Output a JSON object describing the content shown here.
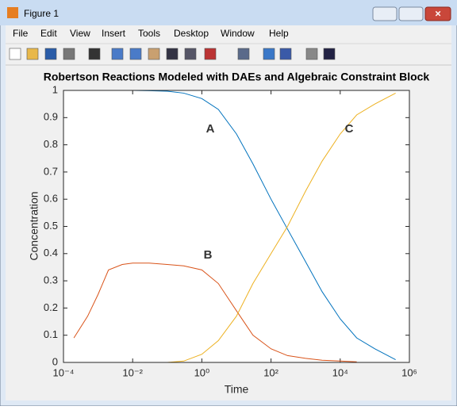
{
  "window_title": "Figure 1",
  "menu": [
    "File",
    "Edit",
    "View",
    "Insert",
    "Tools",
    "Desktop",
    "Window",
    "Help"
  ],
  "chart_data": {
    "type": "line",
    "title": "Robertson Reactions Modeled with DAEs and Algebraic Constraint Block",
    "x_label": "Time",
    "y_label": "Concentration",
    "x": [
      0.0002,
      0.0005,
      0.001,
      0.002,
      0.005,
      0.01,
      0.03,
      0.1,
      0.3,
      1,
      3,
      10,
      30,
      100,
      300,
      1000,
      3000,
      10000,
      30000,
      100000,
      400000
    ],
    "series": [
      {
        "name": "A",
        "color": "#0072bd",
        "values": [
          1,
          1,
          1,
          1,
          1,
          1,
          0.999,
          0.997,
          0.99,
          0.97,
          0.93,
          0.84,
          0.73,
          0.6,
          0.49,
          0.37,
          0.26,
          0.16,
          0.09,
          0.05,
          0.01
        ]
      },
      {
        "name": "B",
        "color": "#d95319",
        "values": [
          0.09,
          0.17,
          0.25,
          0.34,
          0.36,
          0.365,
          0.365,
          0.36,
          0.355,
          0.34,
          0.29,
          0.19,
          0.1,
          0.05,
          0.025,
          0.015,
          0.008,
          0.005,
          0.002,
          null,
          null
        ]
      },
      {
        "name": "C",
        "color": "#edb120",
        "values": [
          null,
          null,
          null,
          null,
          null,
          null,
          null,
          0,
          0.005,
          0.03,
          0.08,
          0.17,
          0.29,
          0.4,
          0.5,
          0.63,
          0.74,
          0.84,
          0.91,
          0.95,
          0.99
        ]
      }
    ],
    "xscale": "log",
    "xlim": [
      0.0001,
      1000000
    ],
    "xticks": [
      {
        "value": 0.0001,
        "label": "10⁻⁴"
      },
      {
        "value": 0.01,
        "label": "10⁻²"
      },
      {
        "value": 1,
        "label": "10⁰"
      },
      {
        "value": 100,
        "label": "10²"
      },
      {
        "value": 10000,
        "label": "10⁴"
      },
      {
        "value": 1000000,
        "label": "10⁶"
      }
    ],
    "ylim": [
      0,
      1
    ],
    "yticks": [
      0,
      0.1,
      0.2,
      0.3,
      0.4,
      0.5,
      0.6,
      0.7,
      0.8,
      0.9,
      1
    ],
    "grid": false
  }
}
